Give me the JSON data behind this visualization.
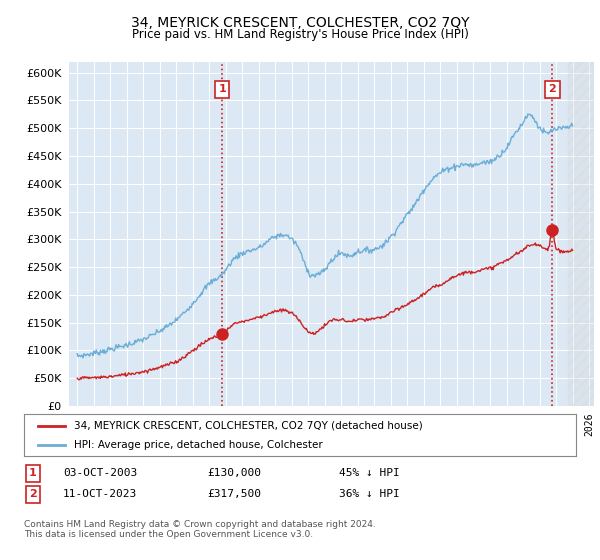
{
  "title": "34, MEYRICK CRESCENT, COLCHESTER, CO2 7QY",
  "subtitle": "Price paid vs. HM Land Registry's House Price Index (HPI)",
  "hpi_color": "#6baed6",
  "price_color": "#cc2222",
  "vline_color": "#cc2222",
  "plot_bg": "#dde8f5",
  "ylim": [
    0,
    620000
  ],
  "yticks": [
    0,
    50000,
    100000,
    150000,
    200000,
    250000,
    300000,
    350000,
    400000,
    450000,
    500000,
    550000,
    600000
  ],
  "transaction1": {
    "date_num": 2003.78,
    "price": 130000,
    "label": "1"
  },
  "transaction2": {
    "date_num": 2023.78,
    "price": 317500,
    "label": "2"
  },
  "legend_line1": "34, MEYRICK CRESCENT, COLCHESTER, CO2 7QY (detached house)",
  "legend_line2": "HPI: Average price, detached house, Colchester",
  "annotation1": [
    "1",
    "03-OCT-2003",
    "£130,000",
    "45% ↓ HPI"
  ],
  "annotation2": [
    "2",
    "11-OCT-2023",
    "£317,500",
    "36% ↓ HPI"
  ],
  "footer": "Contains HM Land Registry data © Crown copyright and database right 2024.\nThis data is licensed under the Open Government Licence v3.0."
}
